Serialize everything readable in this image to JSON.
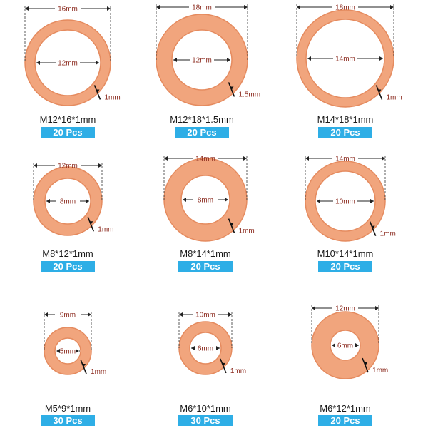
{
  "colors": {
    "copper": "#f1a57d",
    "copper_edge": "#e58b5f",
    "badge": "#2eaee6",
    "dim_text": "#8b2a1e"
  },
  "washers": [
    {
      "outer_label": "16mm",
      "inner_label": "12mm",
      "thick_label": "1mm",
      "name": "M12*16*1mm",
      "qty": "20 Pcs",
      "outer": 16,
      "inner": 12
    },
    {
      "outer_label": "18mm",
      "inner_label": "12mm",
      "thick_label": "1.5mm",
      "name": "M12*18*1.5mm",
      "qty": "20 Pcs",
      "outer": 18,
      "inner": 12
    },
    {
      "outer_label": "18mm",
      "inner_label": "14mm",
      "thick_label": "1mm",
      "name": "M14*18*1mm",
      "qty": "20 Pcs",
      "outer": 18,
      "inner": 14
    },
    {
      "outer_label": "12mm",
      "inner_label": "8mm",
      "thick_label": "1mm",
      "name": "M8*12*1mm",
      "qty": "20 Pcs",
      "outer": 12,
      "inner": 8
    },
    {
      "outer_label": "14mm",
      "inner_label": "8mm",
      "thick_label": "1mm",
      "name": "M8*14*1mm",
      "qty": "20 Pcs",
      "outer": 14,
      "inner": 8
    },
    {
      "outer_label": "14mm",
      "inner_label": "10mm",
      "thick_label": "1mm",
      "name": "M10*14*1mm",
      "qty": "20 Pcs",
      "outer": 14,
      "inner": 10
    },
    {
      "outer_label": "9mm",
      "inner_label": "5mm",
      "thick_label": "1mm",
      "name": "M5*9*1mm",
      "qty": "30 Pcs",
      "outer": 9,
      "inner": 5
    },
    {
      "outer_label": "10mm",
      "inner_label": "6mm",
      "thick_label": "1mm",
      "name": "M6*10*1mm",
      "qty": "30 Pcs",
      "outer": 10,
      "inner": 6
    },
    {
      "outer_label": "12mm",
      "inner_label": "6mm",
      "thick_label": "1mm",
      "name": "M6*12*1mm",
      "qty": "20 Pcs",
      "outer": 12,
      "inner": 6
    }
  ]
}
